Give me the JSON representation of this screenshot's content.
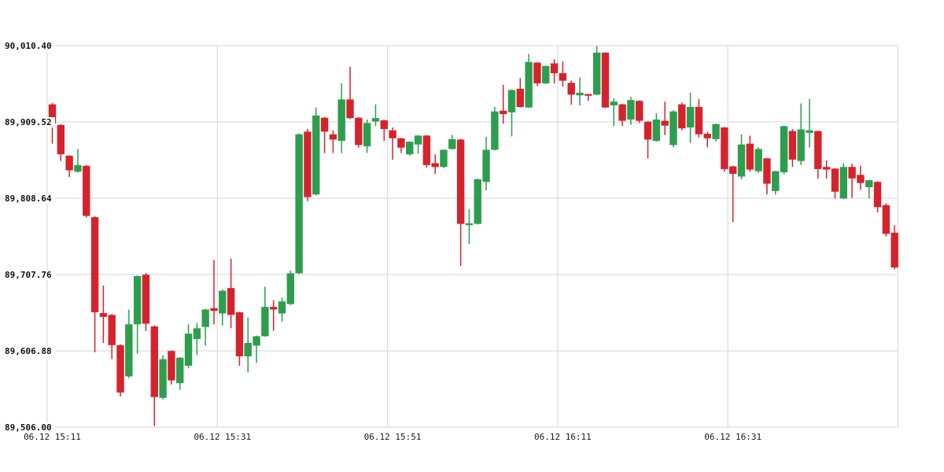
{
  "chart_data": {
    "type": "candlestick",
    "title": "",
    "legend": "none",
    "grid": "on",
    "y_axis": {
      "min": 89506.0,
      "max": 90010.4,
      "tick_values": [
        90010.4,
        89909.52,
        89808.64,
        89707.76,
        89606.88,
        89506.0
      ],
      "labels": [
        "90,010.40",
        "89,909.52",
        "89,808.64",
        "89,707.76",
        "89,606.88",
        "89,506.00"
      ]
    },
    "x_axis": {
      "labels": [
        "06.12 15:11",
        "06.12 15:31",
        "06.12 15:51",
        "06.12 16:11",
        "06.12 16:31"
      ],
      "minutes_per_gridline": 20
    },
    "colors": {
      "up": "#2d9e4e",
      "down": "#d5232e",
      "grid": "#dedede",
      "label": "#111111",
      "background": "#ffffff"
    },
    "candles": {
      "columns": [
        "time",
        "open",
        "high",
        "low",
        "close"
      ],
      "rows": [
        [
          "15:11",
          89932.8,
          89934.5,
          89880.8,
          89907.4
        ],
        [
          "15:12",
          89905.6,
          89906.5,
          89857.8,
          89866.7
        ],
        [
          "15:13",
          89864.9,
          89865.5,
          89836.6,
          89845.5
        ],
        [
          "15:14",
          89843.7,
          89873.7,
          89842.5,
          89852.5
        ],
        [
          "15:15",
          89851.5,
          89852.5,
          89783.0,
          89785.3
        ],
        [
          "15:16",
          89783.6,
          89785.0,
          89604.9,
          89657.9
        ],
        [
          "15:17",
          89656.8,
          89693.2,
          89617.4,
          89651.8
        ],
        [
          "15:18",
          89654.4,
          89655.5,
          89595.9,
          89614.4
        ],
        [
          "15:19",
          89614.4,
          89615.5,
          89546.6,
          89551.8
        ],
        [
          "15:20",
          89573.1,
          89661.4,
          89571.0,
          89642.0
        ],
        [
          "15:21",
          89642.0,
          89706.5,
          89603.2,
          89705.7
        ],
        [
          "15:22",
          89707.5,
          89709.9,
          89633.2,
          89642.8
        ],
        [
          "15:23",
          89639.2,
          89640.5,
          89507.5,
          89545.8
        ],
        [
          "15:24",
          89544.8,
          89601.2,
          89542.5,
          89595.9
        ],
        [
          "15:25",
          89606.7,
          89607.5,
          89562.4,
          89567.8
        ],
        [
          "15:26",
          89564.2,
          89598.5,
          89555.4,
          89597.8
        ],
        [
          "15:27",
          89587.2,
          89642.0,
          89583.7,
          89629.6
        ],
        [
          "15:28",
          89622.6,
          89643.8,
          89601.4,
          89636.7
        ],
        [
          "15:29",
          89638.5,
          89662.5,
          89613.8,
          89661.6
        ],
        [
          "15:30",
          89663.3,
          89727.0,
          89642.0,
          89659.8
        ],
        [
          "15:31",
          89656.3,
          89688.0,
          89640.3,
          89686.3
        ],
        [
          "15:32",
          89689.9,
          89728.8,
          89636.7,
          89654.5
        ],
        [
          "15:33",
          89657.9,
          89658.5,
          89587.2,
          89599.7
        ],
        [
          "15:34",
          89599.7,
          89651.0,
          89578.4,
          89617.3
        ],
        [
          "15:35",
          89613.8,
          89627.0,
          89590.7,
          89626.2
        ],
        [
          "15:36",
          89626.2,
          89691.6,
          89625.5,
          89665.0
        ],
        [
          "15:37",
          89665.0,
          89673.9,
          89633.2,
          89661.6
        ],
        [
          "15:38",
          89656.3,
          89677.5,
          89645.5,
          89672.2
        ],
        [
          "15:39",
          89668.7,
          89712.9,
          89667.5,
          89709.4
        ],
        [
          "15:40",
          89709.4,
          89894.5,
          89708.5,
          89893.2
        ],
        [
          "15:41",
          89896.7,
          89900.2,
          89804.8,
          89810.1
        ],
        [
          "15:42",
          89813.6,
          89928.6,
          89812.5,
          89918.0
        ],
        [
          "15:43",
          89915.1,
          89916.0,
          89868.4,
          89896.7
        ],
        [
          "15:44",
          89893.2,
          89898.5,
          89868.4,
          89886.2
        ],
        [
          "15:45",
          89884.4,
          89960.5,
          89868.4,
          89939.3
        ],
        [
          "15:46",
          89939.3,
          89982.4,
          89913.5,
          89914.5
        ],
        [
          "15:47",
          89915.1,
          89916.0,
          89875.5,
          89879.0
        ],
        [
          "15:48",
          89877.3,
          89912.7,
          89868.4,
          89908.1
        ],
        [
          "15:49",
          89910.2,
          89932.8,
          89903.9,
          89914.5
        ],
        [
          "15:50",
          89911.6,
          89912.5,
          89884.4,
          89900.2
        ],
        [
          "15:51",
          89898.5,
          89902.2,
          89859.6,
          89887.9
        ],
        [
          "15:52",
          89887.9,
          89888.5,
          89868.4,
          89875.5
        ],
        [
          "15:53",
          89866.7,
          89884.0,
          89864.9,
          89883.4
        ],
        [
          "15:54",
          89879.7,
          89892.0,
          89867.7,
          89891.5
        ],
        [
          "15:55",
          89891.5,
          89892.0,
          89849.0,
          89852.5
        ],
        [
          "15:56",
          89855.0,
          89866.7,
          89840.9,
          89850.0
        ],
        [
          "15:57",
          89850.0,
          89873.5,
          89848.5,
          89872.7
        ],
        [
          "15:58",
          89873.7,
          89892.5,
          89873.0,
          89886.8
        ],
        [
          "15:59",
          89886.2,
          89887.0,
          89719.2,
          89774.7
        ],
        [
          "16:00",
          89773.0,
          89794.2,
          89748.2,
          89775.5
        ],
        [
          "16:01",
          89774.7,
          89834.5,
          89774.0,
          89833.8
        ],
        [
          "16:02",
          89830.3,
          89889.8,
          89819.0,
          89872.7
        ],
        [
          "16:03",
          89872.7,
          89929.4,
          89872.0,
          89923.4
        ],
        [
          "16:04",
          89924.4,
          89958.7,
          89907.4,
          89919.8
        ],
        [
          "16:05",
          89922.2,
          89952.5,
          89890.4,
          89951.7
        ],
        [
          "16:06",
          89953.4,
          89967.6,
          89928.5,
          89929.3
        ],
        [
          "16:07",
          89928.6,
          89999.4,
          89928.0,
          89988.8
        ],
        [
          "16:08",
          89988.0,
          89988.5,
          89957.0,
          89960.5
        ],
        [
          "16:09",
          89960.5,
          89984.0,
          89959.5,
          89983.5
        ],
        [
          "16:10",
          89987.0,
          89992.3,
          89960.5,
          89973.9
        ],
        [
          "16:11",
          89973.9,
          89989.5,
          89956.2,
          89964.0
        ],
        [
          "16:12",
          89961.2,
          89964.0,
          89932.2,
          89945.6
        ],
        [
          "16:13",
          89944.6,
          89968.3,
          89931.4,
          89948.1
        ],
        [
          "16:14",
          89946.3,
          89946.8,
          89937.4,
          89944.1
        ],
        [
          "16:15",
          89945.6,
          90010.0,
          89945.0,
          90001.1
        ],
        [
          "16:16",
          90001.1,
          90001.6,
          89928.0,
          89928.6
        ],
        [
          "16:17",
          89931.4,
          89941.0,
          89903.9,
          89936.4
        ],
        [
          "16:18",
          89932.8,
          89933.5,
          89903.9,
          89911.0
        ],
        [
          "16:19",
          89912.7,
          89942.8,
          89905.7,
          89938.5
        ],
        [
          "16:20",
          89937.4,
          89938.0,
          89908.1,
          89911.0
        ],
        [
          "16:21",
          89909.8,
          89910.5,
          89861.4,
          89886.2
        ],
        [
          "16:22",
          89884.4,
          89920.8,
          89883.5,
          89912.7
        ],
        [
          "16:23",
          89911.0,
          89936.4,
          89892.2,
          89904.6
        ],
        [
          "16:24",
          89879.0,
          89925.0,
          89876.0,
          89923.4
        ],
        [
          "16:25",
          89932.8,
          89935.0,
          89898.5,
          89901.0
        ],
        [
          "16:26",
          89902.2,
          89948.1,
          89882.0,
          89929.4
        ],
        [
          "16:27",
          89929.4,
          89940.0,
          89889.0,
          89893.2
        ],
        [
          "16:28",
          89893.9,
          89896.5,
          89876.2,
          89887.9
        ],
        [
          "16:29",
          89886.8,
          89907.5,
          89883.4,
          89906.7
        ],
        [
          "16:30",
          89902.2,
          89903.0,
          89843.7,
          89847.2
        ],
        [
          "16:31",
          89850.8,
          89851.5,
          89777.2,
          89840.9
        ],
        [
          "16:32",
          89837.3,
          89893.2,
          89833.8,
          89879.7
        ],
        [
          "16:33",
          89880.8,
          89891.5,
          89843.7,
          89846.6
        ],
        [
          "16:34",
          89844.4,
          89876.2,
          89841.9,
          89873.7
        ],
        [
          "16:35",
          89861.4,
          89862.0,
          89813.6,
          89827.8
        ],
        [
          "16:36",
          89818.2,
          89845.0,
          89813.6,
          89844.4
        ],
        [
          "16:37",
          89843.0,
          89904.5,
          89840.2,
          89903.9
        ],
        [
          "16:38",
          89897.5,
          89900.3,
          89850.0,
          89859.7
        ],
        [
          "16:39",
          89857.8,
          89933.9,
          89852.5,
          89899.6
        ],
        [
          "16:40",
          89895.1,
          89940.0,
          89875.5,
          89898.5
        ],
        [
          "16:41",
          89897.5,
          89898.0,
          89834.8,
          89847.2
        ],
        [
          "16:42",
          89850.0,
          89858.6,
          89834.8,
          89846.6
        ],
        [
          "16:43",
          89847.9,
          89848.5,
          89808.3,
          89817.2
        ],
        [
          "16:44",
          89808.3,
          89855.0,
          89807.5,
          89850.0
        ],
        [
          "16:45",
          89850.0,
          89854.3,
          89809.0,
          89834.8
        ],
        [
          "16:46",
          89839.5,
          89851.5,
          89819.7,
          89828.8
        ],
        [
          "16:47",
          89823.2,
          89833.0,
          89808.3,
          89832.4
        ],
        [
          "16:48",
          89830.3,
          89831.0,
          89789.9,
          89797.0
        ],
        [
          "16:49",
          89799.5,
          89802.0,
          89758.1,
          89761.6
        ],
        [
          "16:50",
          89763.1,
          89773.0,
          89714.6,
          89717.1
        ]
      ]
    }
  }
}
